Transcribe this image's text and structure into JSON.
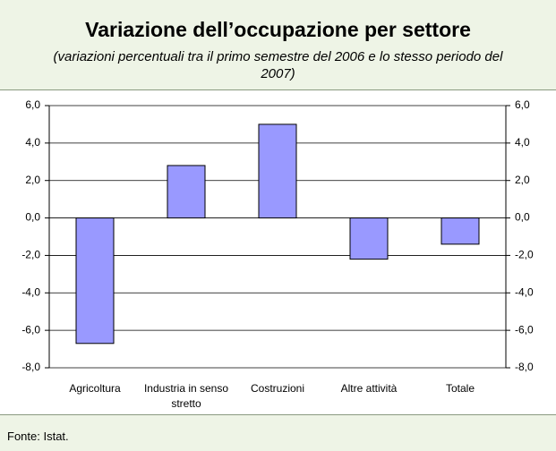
{
  "chart_data": {
    "type": "bar",
    "title": "Variazione dell’occupazione per settore",
    "subtitle": "(variazioni percentuali tra il primo semestre del 2006 e lo stesso periodo del 2007)",
    "source": "Fonte: Istat.",
    "categories": [
      "Agricoltura",
      "Industria in senso stretto",
      "Costruzioni",
      "Altre attività",
      "Totale"
    ],
    "values": [
      -6.7,
      2.8,
      5.0,
      -2.2,
      -1.4
    ],
    "color": "#9999ff",
    "ylim": [
      -8,
      6
    ],
    "yticks": [
      {
        "value": -8,
        "label": "-8,0"
      },
      {
        "value": -6,
        "label": "-6,0"
      },
      {
        "value": -4,
        "label": "-4,0"
      },
      {
        "value": -2,
        "label": "-2,0"
      },
      {
        "value": 0,
        "label": "0,0"
      },
      {
        "value": 2,
        "label": "2,0"
      },
      {
        "value": 4,
        "label": "4,0"
      },
      {
        "value": 6,
        "label": "6,0"
      }
    ],
    "grid": true
  }
}
